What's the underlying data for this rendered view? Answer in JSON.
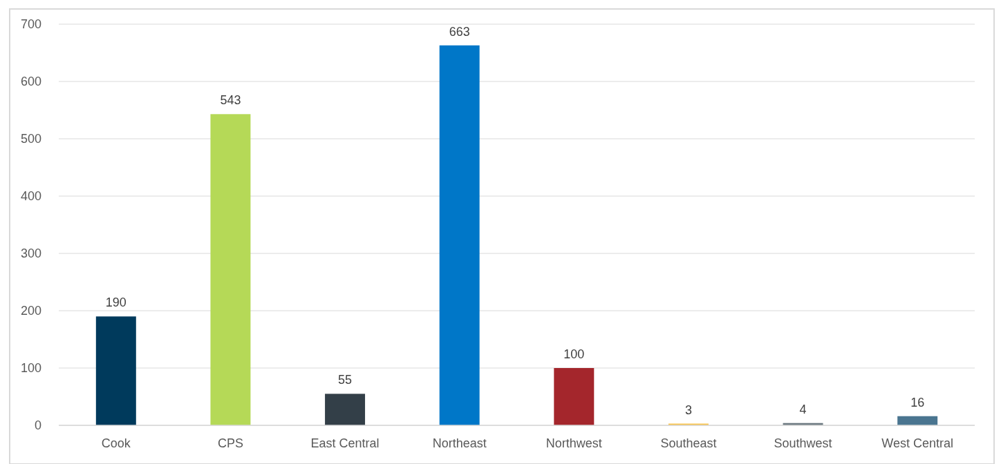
{
  "chart_data": {
    "type": "bar",
    "categories": [
      "Cook",
      "CPS",
      "East Central",
      "Northeast",
      "Northwest",
      "Southeast",
      "Southwest",
      "West Central"
    ],
    "values": [
      190,
      543,
      55,
      663,
      100,
      3,
      4,
      16
    ],
    "colors": [
      "#003a5c",
      "#b5d957",
      "#333f48",
      "#0077c8",
      "#a4262c",
      "#f8c24a",
      "#6b7880",
      "#4a7590"
    ],
    "ylim": [
      0,
      700
    ],
    "yticks": [
      0,
      100,
      200,
      300,
      400,
      500,
      600,
      700
    ],
    "grid": "y",
    "data_labels": true
  }
}
